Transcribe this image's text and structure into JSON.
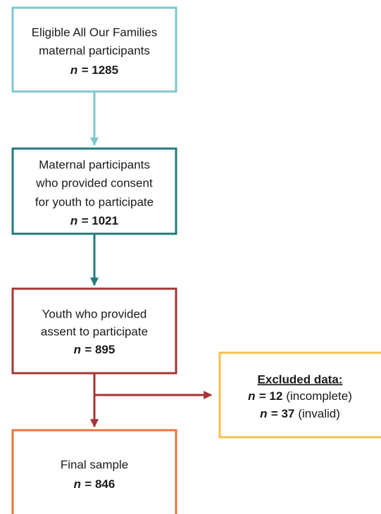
{
  "equals_sign": "=",
  "nodes": [
    {
      "lines": [
        "Eligible All Our Families",
        "maternal participants"
      ],
      "count_symbol": "n",
      "count": 1285
    },
    {
      "lines": [
        "Maternal participants",
        "who provided consent",
        "for youth to participate"
      ],
      "count_symbol": "n",
      "count": 1021
    },
    {
      "lines": [
        "Youth who provided",
        "assent to participate"
      ],
      "count_symbol": "n",
      "count": 895
    },
    {
      "lines": [
        "Final sample"
      ],
      "count_symbol": "n",
      "count": 846
    }
  ],
  "excluded": {
    "title": "Excluded data:",
    "items": [
      {
        "count_symbol": "n",
        "count": 12,
        "reason": "(incomplete)"
      },
      {
        "count_symbol": "n",
        "count": 37,
        "reason": "(invalid)"
      }
    ]
  }
}
